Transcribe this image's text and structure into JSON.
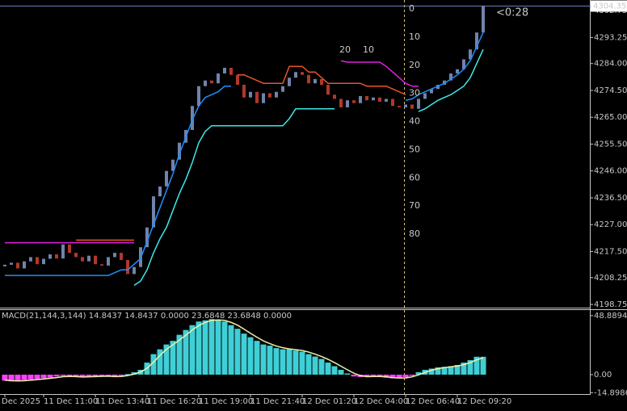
{
  "chart_data": [
    {
      "type": "bar",
      "bar_base": "previous",
      "categories": [
        "Dec 2025",
        null,
        null,
        null,
        null,
        null,
        "11 Dec 11:00",
        null,
        null,
        null,
        null,
        null,
        null,
        null,
        "11 Dec 13:40",
        null,
        null,
        null,
        null,
        null,
        null,
        null,
        "11 Dec 16:20",
        null,
        null,
        null,
        null,
        null,
        null,
        null,
        "11 Dec 19:00",
        null,
        null,
        null,
        null,
        null,
        null,
        null,
        "11 Dec 21:40",
        null,
        null,
        null,
        null,
        null,
        null,
        null,
        "12 Dec 01:20",
        null,
        null,
        null,
        null,
        null,
        null,
        null,
        "12 Dec 04:00",
        null,
        null,
        null,
        null,
        null,
        null,
        null,
        "12 Dec 06:40",
        null,
        null,
        null,
        null,
        null,
        null,
        null,
        "12 Dec 09:20",
        null,
        null,
        null,
        null
      ],
      "ylim": [
        4197.9,
        4306.5
      ],
      "yticks": [
        4302.75,
        4293.25,
        {
          "value": 4284,
          "label": "4284.00"
        },
        {
          "value": 4274.5,
          "label": "4274.50"
        },
        {
          "value": 4265,
          "label": "4265.00"
        },
        {
          "value": 4255.5,
          "label": "4255.50"
        },
        {
          "value": 4246,
          "label": "4246.00"
        },
        {
          "value": 4236.5,
          "label": "4236.50"
        },
        {
          "value": 4227,
          "label": "4227.00"
        },
        {
          "value": 4217.5,
          "label": "4217.50"
        },
        4208.25,
        4198.75
      ],
      "last_price": 4304.35,
      "timer": "<0:28",
      "overlay_ylim": [
        -3.2,
        105.8
      ],
      "overlay_ticks": [
        0,
        10,
        20,
        30,
        40,
        50,
        60,
        70,
        80
      ],
      "overlay_labels": [
        20,
        10
      ],
      "series": [
        {
          "kind": "bar",
          "color": "#7083ab",
          "down_color": "#b3372a",
          "values": [
            4212.8,
            4213.5,
            4211.5,
            4214.0,
            4215.5,
            4213.0,
            4214.9,
            4216.5,
            4215.0,
            4220.0,
            4217.0,
            4215.5,
            4214.0,
            4216.0,
            4213.0,
            4212.5,
            4215.5,
            4217.0,
            4214.5,
            4209.5,
            4212.0,
            4219.0,
            4226.0,
            4237.0,
            4240.5,
            4246.0,
            4250.0,
            4256.0,
            4260.5,
            4269.0,
            4276.0,
            4278.0,
            4277.0,
            4280.5,
            4282.5,
            4280.0,
            4276.5,
            4272.0,
            4274.0,
            4270.0,
            4273.5,
            4272.0,
            4274.0,
            4276.0,
            4279.0,
            4281.0,
            4280.0,
            4277.0,
            4278.5,
            4276.5,
            4273.0,
            4271.5,
            4268.5,
            4271.0,
            4270.0,
            4272.5,
            4271.0,
            4272.0,
            4270.5,
            4271.5,
            4269.0,
            4268.5,
            4269.5,
            4268.0,
            4271.5,
            4273.5,
            4275.0,
            4276.5,
            4278.0,
            4280.5,
            4282.0,
            4285.5,
            4289.0,
            4295.0,
            4304.35
          ]
        },
        {
          "kind": "line",
          "color": "#e020e0",
          "values": [
            4220.6,
            4220.6,
            4220.6,
            4220.6,
            4220.6,
            4220.6,
            4220.6,
            4220.6,
            4220.6,
            4220.6,
            4220.6,
            4220.6,
            4220.6,
            4220.6,
            4220.6,
            4220.6,
            4220.6,
            4220.6,
            4220.6,
            4220.6,
            4220.6,
            null,
            null,
            null,
            null,
            null,
            null,
            null,
            null,
            null,
            null,
            null,
            null,
            null,
            null,
            null,
            null,
            null,
            null,
            null,
            null,
            null,
            null,
            null,
            null,
            null,
            null,
            null,
            null,
            null,
            null,
            null,
            4285,
            4284.5,
            4284.5,
            4284.5,
            4284.5,
            4284.5,
            4284.5,
            4283,
            4281,
            4279,
            4277,
            4276,
            4276,
            null,
            null,
            null,
            null,
            null,
            null,
            null,
            null,
            null,
            null
          ]
        },
        {
          "kind": "line",
          "color": "#e8542a",
          "values": [
            null,
            null,
            null,
            null,
            null,
            null,
            null,
            null,
            null,
            null,
            null,
            4221.5,
            4221.5,
            4221.5,
            4221.5,
            4221.5,
            4221.5,
            4221.5,
            4221.5,
            4221.5,
            4221.5,
            null,
            null,
            null,
            null,
            null,
            null,
            null,
            null,
            null,
            null,
            null,
            null,
            null,
            null,
            null,
            4280,
            4280,
            4279,
            4278,
            4277,
            4277,
            4277,
            4277,
            4283,
            4283,
            4283,
            4281,
            4281,
            4279,
            4277,
            4277,
            4277,
            4277,
            4277,
            4277,
            4276,
            4276,
            4276,
            4276,
            4275,
            4274,
            4273,
            null,
            null,
            null,
            null,
            null,
            null,
            null,
            null,
            null,
            null,
            null,
            null
          ]
        },
        {
          "kind": "line",
          "color": "#1e8fff",
          "values": [
            4209,
            4209,
            4209,
            4209,
            4209,
            4209,
            4209,
            4209,
            4209,
            4209,
            4209,
            4209,
            4209,
            4209,
            4209,
            4209,
            4209,
            4210,
            4211,
            4211,
            4213,
            4215,
            4221,
            4227,
            4233,
            4239,
            4245,
            4252,
            4258,
            4264,
            4269,
            4272,
            4273,
            4274,
            4276,
            4276,
            null,
            null,
            null,
            null,
            null,
            null,
            null,
            null,
            null,
            null,
            null,
            null,
            null,
            null,
            null,
            null,
            null,
            null,
            null,
            null,
            null,
            null,
            null,
            null,
            null,
            null,
            4271,
            4271.5,
            4273,
            4274,
            4275,
            4276,
            4277,
            4278.5,
            4280,
            4282,
            4285,
            4290,
            4295
          ]
        },
        {
          "kind": "line",
          "color": "#3ee8e8",
          "values": [
            null,
            null,
            null,
            null,
            null,
            null,
            null,
            null,
            null,
            null,
            null,
            null,
            null,
            null,
            null,
            null,
            null,
            null,
            null,
            null,
            4205.5,
            4207,
            4211,
            4217,
            4222,
            4226,
            4232,
            4238,
            4243,
            4249,
            4256,
            4260,
            4262,
            4262,
            4262,
            4262,
            4262,
            4262,
            4262,
            4262,
            4262,
            4262,
            4262,
            4262,
            4264.5,
            4268,
            4268,
            4268,
            4268,
            4268,
            4268,
            4268,
            null,
            null,
            null,
            null,
            null,
            null,
            null,
            null,
            null,
            null,
            null,
            null,
            4267,
            4268,
            4269.5,
            4271,
            4272,
            4273,
            4274.5,
            4276,
            4279,
            4284,
            4289
          ]
        }
      ]
    },
    {
      "type": "bar",
      "bar_base": "zero",
      "title": "MACD(21,144,3,144) 14.8437 14.8437 0.0000 23.6848 23.6848 0.0000",
      "ylim": [
        -16.06,
        53.5
      ],
      "yticks": [
        48.8894,
        {
          "value": 0,
          "label": "0.00"
        },
        -14.8986
      ],
      "series": [
        {
          "kind": "bar",
          "color": "#3fcfd6",
          "down_color": "#ff40ff",
          "values": [
            -5,
            -5.5,
            -5,
            -4.5,
            -4,
            -3.5,
            -3,
            -2.5,
            -1.5,
            -1,
            -1.5,
            -2,
            -2,
            -1.5,
            -1.5,
            -1,
            -1.5,
            -2,
            -1,
            0.5,
            2,
            4,
            10,
            17,
            21,
            25,
            28,
            33,
            37,
            41,
            44,
            45,
            46,
            45,
            44,
            41,
            38,
            34,
            31,
            28,
            25,
            24,
            22,
            21,
            21,
            20,
            19,
            17,
            15,
            13,
            10,
            7,
            4,
            1,
            -1.5,
            -2,
            -1.5,
            -1,
            -2,
            -2.5,
            -3,
            -3,
            -2,
            -0.5,
            2,
            4,
            5,
            6,
            6.5,
            7,
            8,
            10,
            12,
            14.8437,
            14.8437
          ]
        },
        {
          "kind": "line",
          "color": "#eef2a8",
          "values": [
            -4.5,
            -5,
            -5.2,
            -5,
            -4.6,
            -4.1,
            -3.6,
            -3,
            -2.4,
            -1.7,
            -1.4,
            -1.6,
            -1.9,
            -1.8,
            -1.6,
            -1.4,
            -1.3,
            -1.6,
            -1.5,
            -0.8,
            0.4,
            2.2,
            5.3,
            10.3,
            16,
            21,
            24.7,
            28.7,
            32.7,
            37,
            40.7,
            43.3,
            45,
            45.3,
            45,
            43.3,
            41,
            37.7,
            34.3,
            31,
            28,
            25.7,
            23.7,
            22.3,
            21.3,
            20.7,
            20,
            18.7,
            17,
            15,
            12.7,
            10,
            7,
            4,
            1.2,
            -0.8,
            -1.7,
            -1.5,
            -1.5,
            -1.8,
            -2.5,
            -2.8,
            -2.7,
            -1.8,
            -0.2,
            1.8,
            3.7,
            5,
            5.8,
            6.5,
            7.2,
            8.3,
            10,
            12.3,
            13.9
          ]
        }
      ]
    }
  ]
}
